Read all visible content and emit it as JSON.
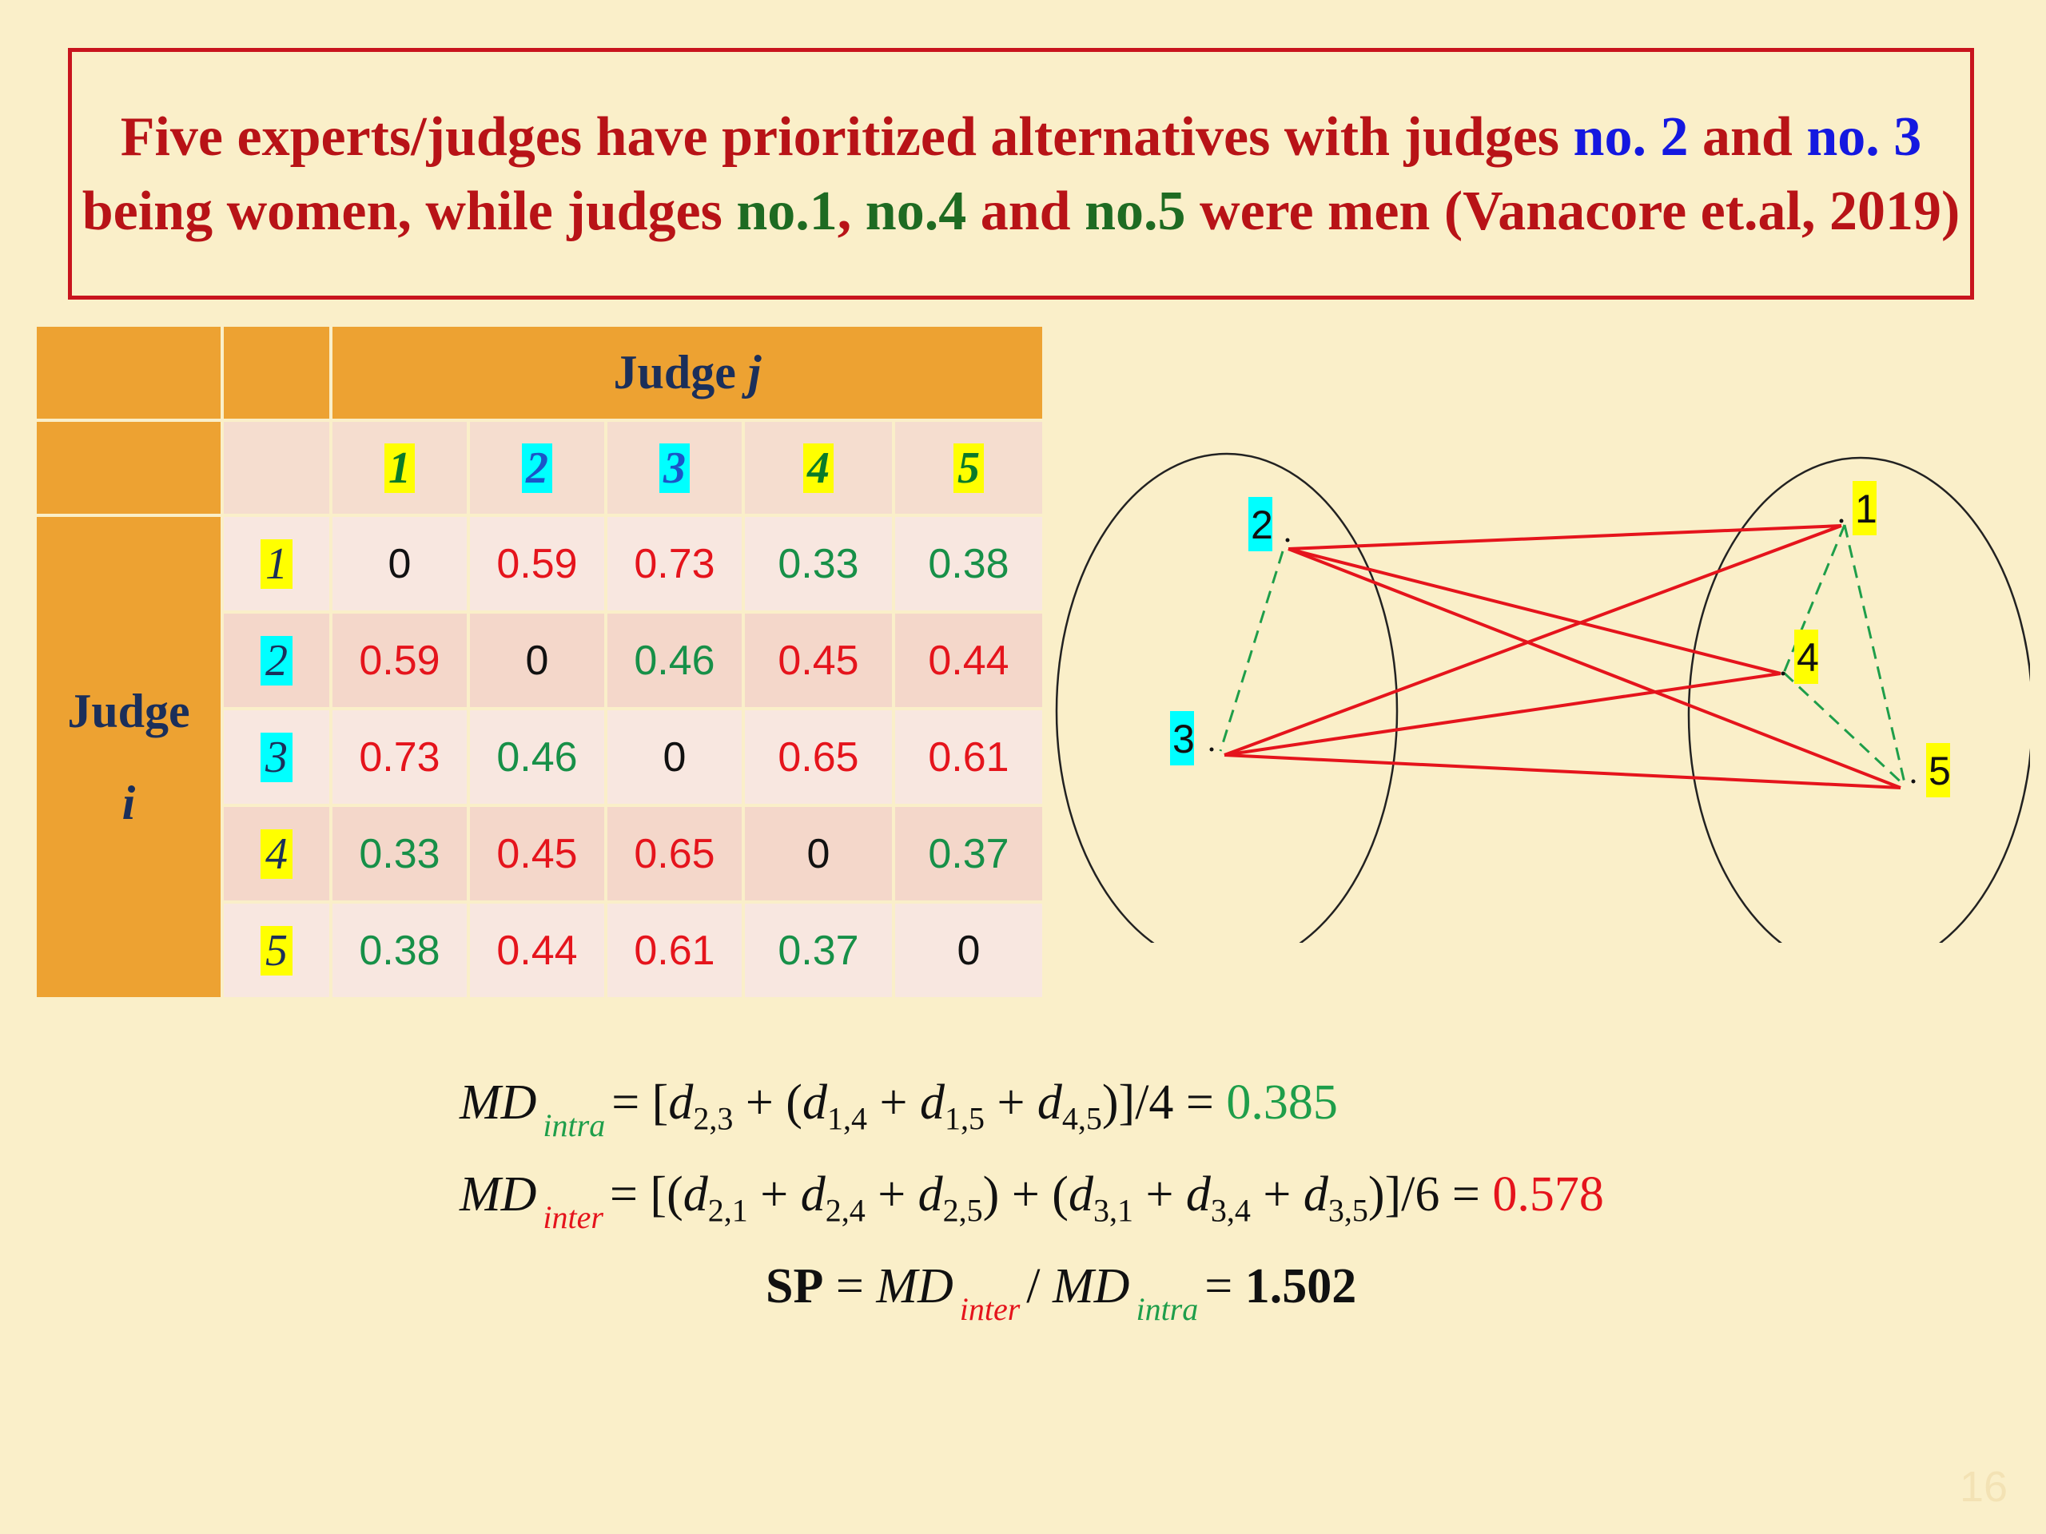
{
  "title": {
    "seg1": "Five experts/judges have prioritized alternatives with judges ",
    "no2": "no. 2",
    "seg2": " and ",
    "no3": "no. 3",
    "seg3": " being women, while judges ",
    "no1": "no.1",
    "seg4": ", ",
    "no4": "no.4",
    "seg5": " and ",
    "no5": "no.5",
    "seg6": "  were men (Vanacore et.al, 2019)"
  },
  "table": {
    "col_group_label": "Judge ",
    "col_group_var": "j",
    "row_group_label": "Judge",
    "row_group_var": "i",
    "col_headers": [
      "1",
      "2",
      "3",
      "4",
      "5"
    ],
    "rows": [
      {
        "label": "1",
        "values": [
          "0",
          "0.59",
          "0.73",
          "0.33",
          "0.38"
        ]
      },
      {
        "label": "2",
        "values": [
          "0.59",
          "0",
          "0.46",
          "0.45",
          "0.44"
        ]
      },
      {
        "label": "3",
        "values": [
          "0.73",
          "0.46",
          "0",
          "0.65",
          "0.61"
        ]
      },
      {
        "label": "4",
        "values": [
          "0.33",
          "0.45",
          "0.65",
          "0",
          "0.37"
        ]
      },
      {
        "label": "5",
        "values": [
          "0.38",
          "0.44",
          "0.61",
          "0.37",
          "0"
        ]
      }
    ]
  },
  "diagram": {
    "nodes": [
      "1",
      "2",
      "3",
      "4",
      "5"
    ],
    "colors": {
      "women": "#00FFFF",
      "men": "#FFFF00",
      "inter_edge": "#E5141C",
      "intra_edge": "#1E9E4A"
    }
  },
  "formulas": {
    "md": "MD",
    "intra": "intra",
    "inter": "inter",
    "intra_result": "0.385",
    "inter_result": "0.578",
    "sp": "SP",
    "sp_result": "1.502"
  },
  "page_number": "16"
}
